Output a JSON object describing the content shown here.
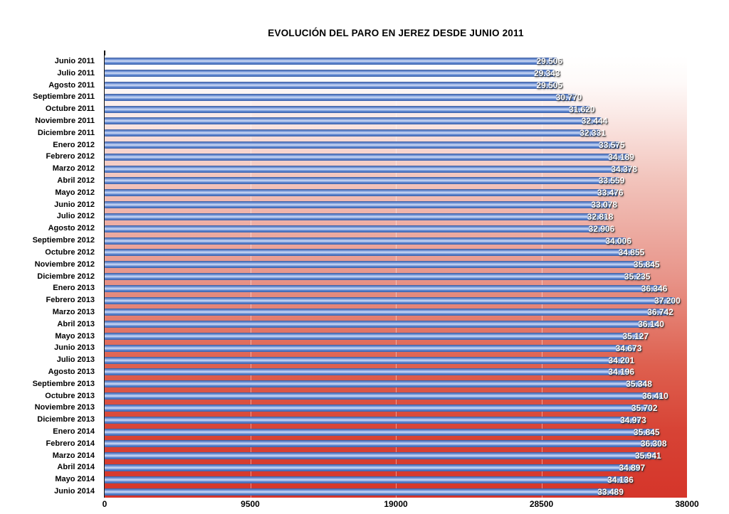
{
  "chart_data": {
    "type": "bar",
    "orientation": "horizontal",
    "title": "EVOLUCIÓN DEL PARO EN JEREZ DESDE JUNIO 2011",
    "xlabel": "",
    "ylabel": "",
    "xlim": [
      0,
      38000
    ],
    "x_ticks": [
      {
        "value": 0,
        "label": "0"
      },
      {
        "value": 9500,
        "label": "9500"
      },
      {
        "value": 19000,
        "label": "19000"
      },
      {
        "value": 28500,
        "label": "28500"
      },
      {
        "value": 38000,
        "label": "38000"
      }
    ],
    "grid": "vertical-faint-white",
    "legend": "none",
    "colors": {
      "bar_blue": "#5e87d1",
      "background_top": "#ffffff",
      "background_bottom": "#d5352a",
      "value_label_text": "#ffffff",
      "axis_text": "#000000"
    },
    "points": [
      {
        "category": "Junio 2011",
        "value": 29506,
        "label": "29.506"
      },
      {
        "category": "Julio 2011",
        "value": 29343,
        "label": "29.343"
      },
      {
        "category": "Agosto 2011",
        "value": 29505,
        "label": "29.505"
      },
      {
        "category": "Septiembre 2011",
        "value": 30770,
        "label": "30.770"
      },
      {
        "category": "Octubre 2011",
        "value": 31620,
        "label": "31.620"
      },
      {
        "category": "Noviembre 2011",
        "value": 32444,
        "label": "32.444"
      },
      {
        "category": "Diciembre 2011",
        "value": 32331,
        "label": "32.331"
      },
      {
        "category": "Enero 2012",
        "value": 33575,
        "label": "33.575"
      },
      {
        "category": "Febrero 2012",
        "value": 34189,
        "label": "34.189"
      },
      {
        "category": "Marzo 2012",
        "value": 34378,
        "label": "34.378"
      },
      {
        "category": "Abril 2012",
        "value": 33559,
        "label": "33.559"
      },
      {
        "category": "Mayo 2012",
        "value": 33476,
        "label": "33.476"
      },
      {
        "category": "Junio 2012",
        "value": 33078,
        "label": "33.078"
      },
      {
        "category": "Julio 2012",
        "value": 32818,
        "label": "32.818"
      },
      {
        "category": "Agosto 2012",
        "value": 32906,
        "label": "32.906"
      },
      {
        "category": "Septiembre 2012",
        "value": 34006,
        "label": "34.006"
      },
      {
        "category": "Octubre 2012",
        "value": 34855,
        "label": "34.855"
      },
      {
        "category": "Noviembre 2012",
        "value": 35845,
        "label": "35.845"
      },
      {
        "category": "Diciembre 2012",
        "value": 35235,
        "label": "35.235"
      },
      {
        "category": "Enero 2013",
        "value": 36346,
        "label": "36.346"
      },
      {
        "category": "Febrero 2013",
        "value": 37200,
        "label": "37.200"
      },
      {
        "category": "Marzo 2013",
        "value": 36742,
        "label": "36.742"
      },
      {
        "category": "Abril 2013",
        "value": 36140,
        "label": "36.140"
      },
      {
        "category": "Mayo 2013",
        "value": 35127,
        "label": "35.127"
      },
      {
        "category": "Junio 2013",
        "value": 34673,
        "label": "34.673"
      },
      {
        "category": "Julio 2013",
        "value": 34201,
        "label": "34.201"
      },
      {
        "category": "Agosto 2013",
        "value": 34196,
        "label": "34.196"
      },
      {
        "category": "Septiembre 2013",
        "value": 35348,
        "label": "35.348"
      },
      {
        "category": "Octubre 2013",
        "value": 36410,
        "label": "36.410"
      },
      {
        "category": "Noviembre 2013",
        "value": 35702,
        "label": "35.702"
      },
      {
        "category": "Diciembre 2013",
        "value": 34973,
        "label": "34.973"
      },
      {
        "category": "Enero 2014",
        "value": 35845,
        "label": "35.845"
      },
      {
        "category": "Febrero 2014",
        "value": 36308,
        "label": "36.308"
      },
      {
        "category": "Marzo 2014",
        "value": 35941,
        "label": "35.941"
      },
      {
        "category": "Abril 2014",
        "value": 34897,
        "label": "34.897"
      },
      {
        "category": "Mayo 2014",
        "value": 34136,
        "label": "34.136"
      },
      {
        "category": "Junio 2014",
        "value": 33489,
        "label": "33.489"
      }
    ]
  }
}
